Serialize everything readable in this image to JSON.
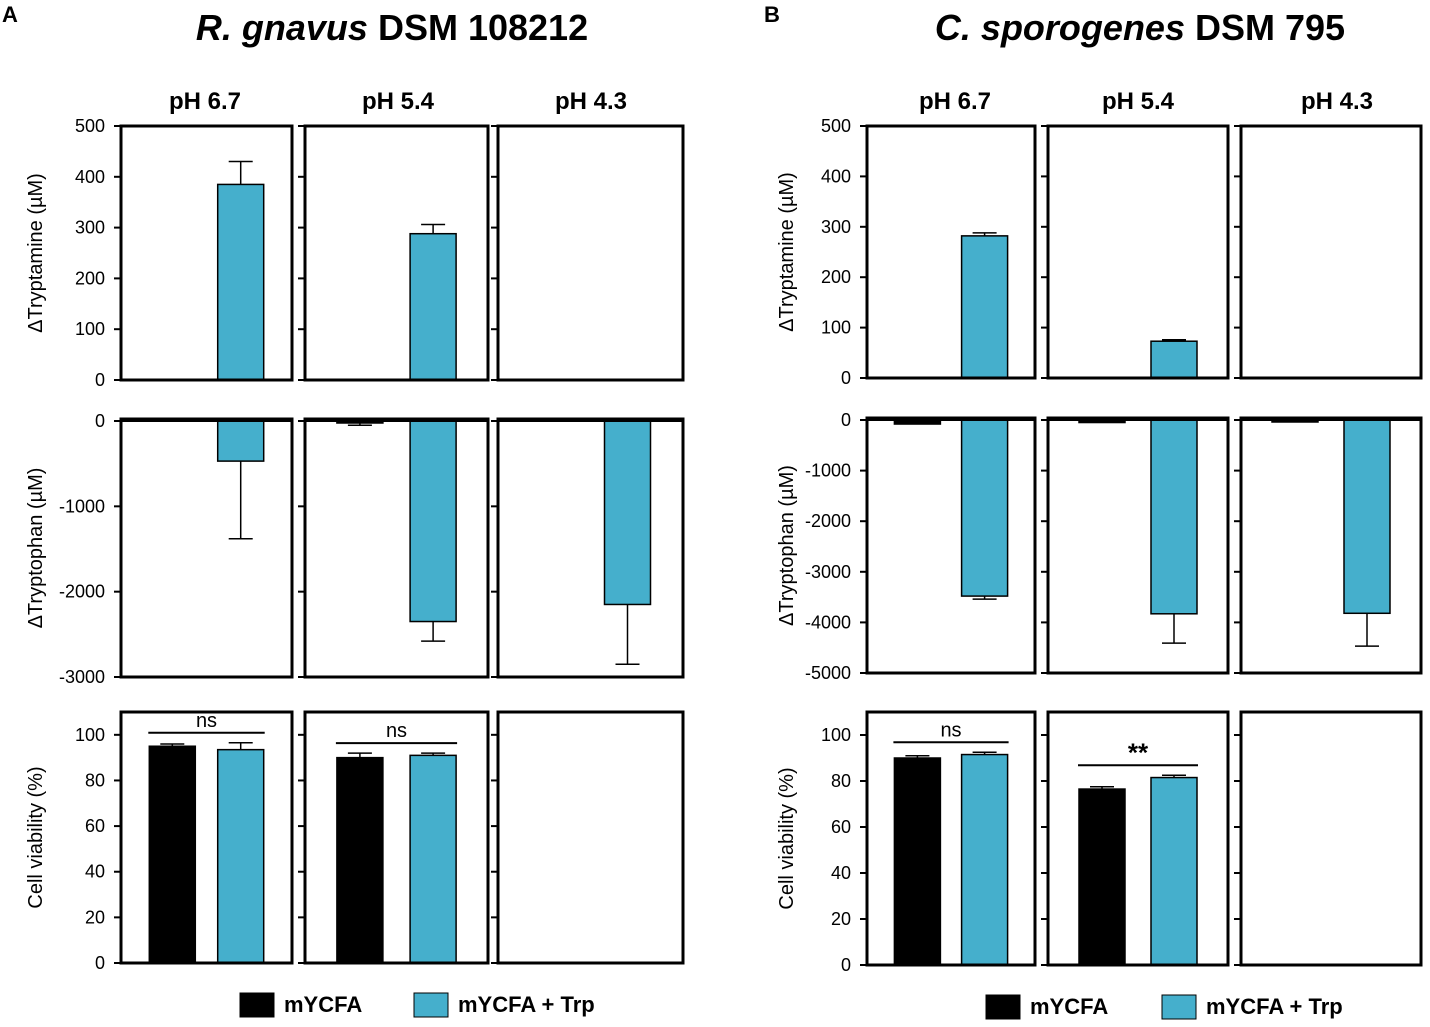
{
  "figure": {
    "colors": {
      "mycfa": "#000000",
      "trp": "#45AFCC"
    },
    "legend": [
      {
        "label": "mYCFA",
        "color": "#000000"
      },
      {
        "label": "mYCFA + Trp",
        "color": "#45AFCC"
      }
    ],
    "panels": [
      {
        "letter": "A",
        "title_italic": "R. gnavus",
        "title_rest": " DSM 108212",
        "ph_labels": [
          "pH 6.7",
          "pH 5.4",
          "pH 4.3"
        ]
      },
      {
        "letter": "B",
        "title_italic": "C. sporogenes",
        "title_rest": " DSM 795",
        "ph_labels": [
          "pH 6.7",
          "pH 5.4",
          "pH 4.3"
        ]
      }
    ]
  },
  "chart_data": [
    {
      "type": "bar",
      "panel": "A",
      "row": "tryptamine",
      "ylabel": "ΔTryptamine (µM)",
      "ylim": [
        0,
        500
      ],
      "yticks": [
        0,
        100,
        200,
        300,
        400,
        500
      ],
      "categories": [
        "pH 6.7",
        "pH 5.4",
        "pH 4.3"
      ],
      "series": [
        {
          "name": "mYCFA",
          "values": [
            0,
            0,
            0
          ],
          "errors": [
            0,
            0,
            0
          ]
        },
        {
          "name": "mYCFA + Trp",
          "values": [
            385,
            288,
            0
          ],
          "errors": [
            45,
            18,
            0
          ]
        }
      ],
      "annotations": []
    },
    {
      "type": "bar",
      "panel": "A",
      "row": "tryptophan",
      "ylabel": "ΔTryptophan (µM)",
      "ylim": [
        -3000,
        0
      ],
      "yticks": [
        0,
        -1000,
        -2000,
        -3000
      ],
      "categories": [
        "pH 6.7",
        "pH 5.4",
        "pH 4.3"
      ],
      "series": [
        {
          "name": "mYCFA",
          "values": [
            0,
            -20,
            0
          ],
          "errors": [
            0,
            30,
            0
          ]
        },
        {
          "name": "mYCFA + Trp",
          "values": [
            -470,
            -2350,
            -2150
          ],
          "errors": [
            910,
            230,
            700
          ]
        }
      ],
      "annotations": []
    },
    {
      "type": "bar",
      "panel": "A",
      "row": "viability",
      "ylabel": "Cell viability (%)",
      "ylim": [
        0,
        110
      ],
      "yticks": [
        0,
        20,
        40,
        60,
        80,
        100
      ],
      "categories": [
        "pH 6.7",
        "pH 5.4",
        "pH 4.3"
      ],
      "series": [
        {
          "name": "mYCFA",
          "values": [
            95,
            90,
            null
          ],
          "errors": [
            1,
            2,
            0
          ]
        },
        {
          "name": "mYCFA + Trp",
          "values": [
            93.5,
            91,
            null
          ],
          "errors": [
            3,
            1,
            0
          ]
        }
      ],
      "annotations": [
        {
          "category": "pH 6.7",
          "text": "ns"
        },
        {
          "category": "pH 5.4",
          "text": "ns"
        }
      ]
    },
    {
      "type": "bar",
      "panel": "B",
      "row": "tryptamine",
      "ylabel": "ΔTryptamine (µM)",
      "ylim": [
        0,
        500
      ],
      "yticks": [
        0,
        100,
        200,
        300,
        400,
        500
      ],
      "categories": [
        "pH 6.7",
        "pH 5.4",
        "pH 4.3"
      ],
      "series": [
        {
          "name": "mYCFA",
          "values": [
            0,
            0,
            0
          ],
          "errors": [
            0,
            0,
            0
          ]
        },
        {
          "name": "mYCFA + Trp",
          "values": [
            282,
            73,
            0
          ],
          "errors": [
            6,
            3,
            0
          ]
        }
      ],
      "annotations": []
    },
    {
      "type": "bar",
      "panel": "B",
      "row": "tryptophan",
      "ylabel": "ΔTryptophan (µM)",
      "ylim": [
        -5000,
        0
      ],
      "yticks": [
        0,
        -1000,
        -2000,
        -3000,
        -4000,
        -5000
      ],
      "categories": [
        "pH 6.7",
        "pH 5.4",
        "pH 4.3"
      ],
      "series": [
        {
          "name": "mYCFA",
          "values": [
            -80,
            -50,
            -20
          ],
          "errors": [
            0,
            0,
            0
          ]
        },
        {
          "name": "mYCFA + Trp",
          "values": [
            -3480,
            -3830,
            -3820
          ],
          "errors": [
            60,
            580,
            650
          ]
        }
      ],
      "annotations": []
    },
    {
      "type": "bar",
      "panel": "B",
      "row": "viability",
      "ylabel": "Cell viability (%)",
      "ylim": [
        0,
        110
      ],
      "yticks": [
        0,
        20,
        40,
        60,
        80,
        100
      ],
      "categories": [
        "pH 6.7",
        "pH 5.4",
        "pH 4.3"
      ],
      "series": [
        {
          "name": "mYCFA",
          "values": [
            90,
            76.5,
            null
          ],
          "errors": [
            1,
            1,
            0
          ]
        },
        {
          "name": "mYCFA + Trp",
          "values": [
            91.5,
            81.5,
            null
          ],
          "errors": [
            1,
            1,
            0
          ]
        }
      ],
      "annotations": [
        {
          "category": "pH 6.7",
          "text": "ns"
        },
        {
          "category": "pH 5.4",
          "text": "**"
        }
      ]
    }
  ]
}
